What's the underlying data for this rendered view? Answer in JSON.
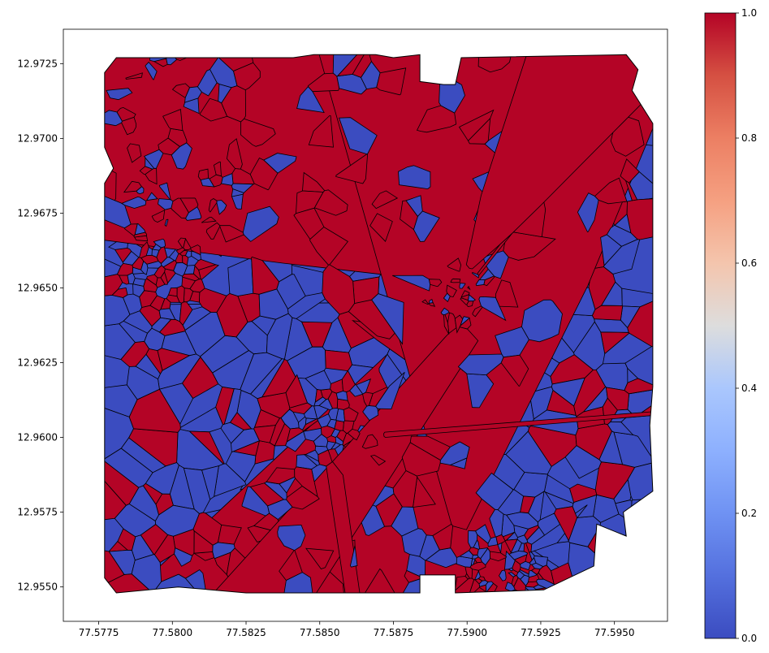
{
  "chart_data": {
    "type": "heatmap",
    "subtype": "voronoi-choropleth",
    "title": "",
    "xlabel": "",
    "ylabel": "",
    "xlim": [
      77.5763,
      77.5968
    ],
    "ylim": [
      12.95385,
      12.97365
    ],
    "x_ticks": [
      77.5775,
      77.58,
      77.5825,
      77.585,
      77.5875,
      77.59,
      77.5925,
      77.595
    ],
    "x_tick_labels": [
      "77.5775",
      "77.5800",
      "77.5825",
      "77.5850",
      "77.5875",
      "77.5900",
      "77.5925",
      "77.5950"
    ],
    "y_ticks": [
      12.955,
      12.9575,
      12.96,
      12.9625,
      12.965,
      12.9675,
      12.97,
      12.9725
    ],
    "y_tick_labels": [
      "12.9550",
      "12.9575",
      "12.9600",
      "12.9625",
      "12.9650",
      "12.9675",
      "12.9700",
      "12.9725"
    ],
    "colorbar": {
      "colormap": "coolwarm",
      "vmin": 0.0,
      "vmax": 1.0,
      "ticks": [
        0.0,
        0.2,
        0.4,
        0.6,
        0.8,
        1.0
      ],
      "tick_labels": [
        "0.0",
        "0.2",
        "0.4",
        "0.6",
        "0.8",
        "1.0"
      ],
      "color_min": "#3b4cc0",
      "color_mid": "#dddddd",
      "color_max": "#b40426"
    },
    "cell_values": [
      0,
      1
    ],
    "cell_edge_color": "#000000",
    "region_boundary": [
      [
        77.5777,
        12.9722
      ],
      [
        77.5781,
        12.9727
      ],
      [
        77.5841,
        12.9727
      ],
      [
        77.5848,
        12.9728
      ],
      [
        77.5869,
        12.9728
      ],
      [
        77.5875,
        12.9727
      ],
      [
        77.5884,
        12.9728
      ],
      [
        77.5884,
        12.9719
      ],
      [
        77.5892,
        12.9718
      ],
      [
        77.5896,
        12.9718
      ],
      [
        77.5898,
        12.9727
      ],
      [
        77.5954,
        12.9728
      ],
      [
        77.5958,
        12.9723
      ],
      [
        77.5956,
        12.9716
      ],
      [
        77.5963,
        12.9705
      ],
      [
        77.5963,
        12.9617
      ],
      [
        77.5962,
        12.9604
      ],
      [
        77.5963,
        12.9582
      ],
      [
        77.5953,
        12.9575
      ],
      [
        77.5954,
        12.9567
      ],
      [
        77.5944,
        12.9571
      ],
      [
        77.5943,
        12.9557
      ],
      [
        77.5926,
        12.9549
      ],
      [
        77.5896,
        12.9548
      ],
      [
        77.5896,
        12.9554
      ],
      [
        77.5884,
        12.9554
      ],
      [
        77.5884,
        12.9548
      ],
      [
        77.5825,
        12.9548
      ],
      [
        77.5802,
        12.955
      ],
      [
        77.5781,
        12.9548
      ],
      [
        77.5777,
        12.9553
      ],
      [
        77.5777,
        12.9685
      ],
      [
        77.578,
        12.969
      ],
      [
        77.5777,
        12.9697
      ]
    ]
  }
}
